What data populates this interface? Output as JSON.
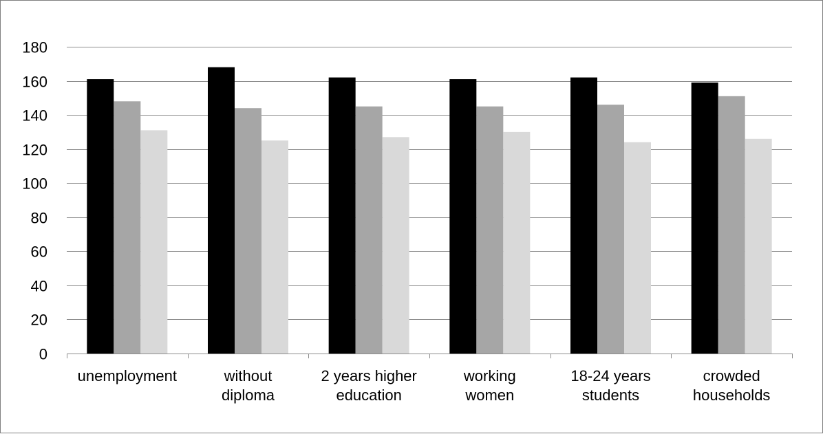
{
  "chart_data": {
    "type": "bar",
    "title": "",
    "xlabel": "",
    "ylabel": "",
    "ylim": [
      0,
      180
    ],
    "yticks": [
      0,
      20,
      40,
      60,
      80,
      100,
      120,
      140,
      160,
      180
    ],
    "grid": true,
    "legend": "none",
    "categories": [
      [
        "unemployment"
      ],
      [
        "without",
        "diploma"
      ],
      [
        "2 years higher",
        "education"
      ],
      [
        "working",
        "women"
      ],
      [
        "18-24 years",
        "students"
      ],
      [
        "crowded",
        "households"
      ]
    ],
    "series": [
      {
        "color": "#000000",
        "values": [
          161,
          168,
          162,
          161,
          162,
          159
        ]
      },
      {
        "color": "#a6a6a6",
        "values": [
          148,
          144,
          145,
          145,
          146,
          151
        ]
      },
      {
        "color": "#d9d9d9",
        "values": [
          131,
          125,
          127,
          130,
          124,
          126
        ]
      }
    ]
  }
}
